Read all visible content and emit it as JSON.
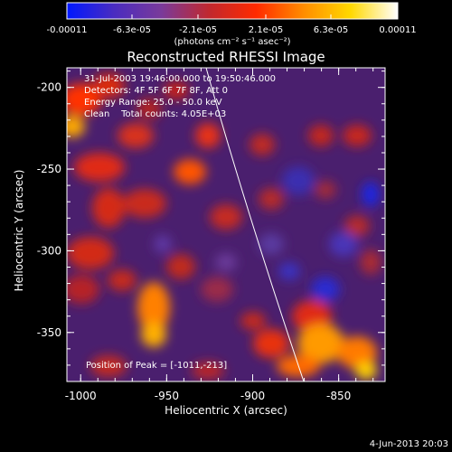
{
  "colorbar": {
    "tick_labels": [
      "-0.00011",
      "-6.3e-05",
      "-2.1e-05",
      "2.1e-05",
      "6.3e-05",
      "0.00011"
    ],
    "units_label": "(photons cm⁻² s⁻¹ asec⁻²)",
    "stops": [
      "#0018ff",
      "#4a2cc0",
      "#7a3a9a",
      "#c0282f",
      "#ff2a00",
      "#ff8c00",
      "#ffd800",
      "#ffffff"
    ]
  },
  "plot": {
    "title": "Reconstructed RHESSI Image",
    "info_lines": [
      "31-Jul-2003 19:46:00.000 to 19:50:46.000",
      "Detectors: 4F 5F 6F 7F 8F, Att 0",
      "Energy Range: 25.0 - 50.0 keV",
      "Clean    Total counts: 4.05E+03"
    ],
    "peak_label": "Position of Peak = [-1011,-213]",
    "x_tick_labels": [
      "-1000",
      "-950",
      "-900",
      "-850"
    ],
    "y_tick_labels": [
      "-200",
      "-250",
      "-300",
      "-350"
    ],
    "xlabel": "Heliocentric X (arcsec)",
    "ylabel": "Heliocentric Y (arcsec)",
    "xlim": [
      -1008,
      -823
    ],
    "ylim": [
      -380,
      -188
    ]
  },
  "footer": {
    "date": "4-Jun-2013 20:03"
  },
  "colors": {
    "background": "#000000",
    "map_base": "#4a1f6e",
    "limb": "#ffffff"
  }
}
